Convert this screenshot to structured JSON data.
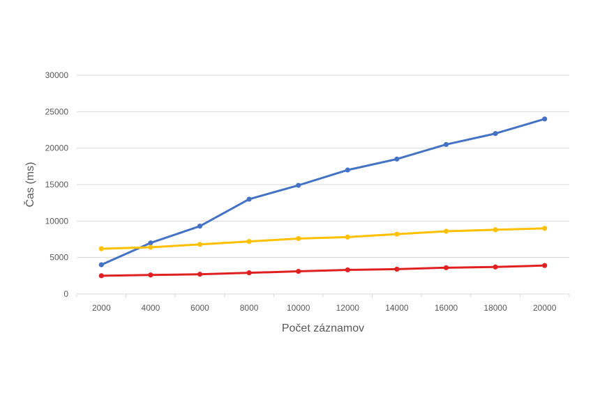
{
  "chart_data": {
    "type": "line",
    "title": "",
    "xlabel": "Počet záznamov",
    "ylabel": "Čas (ms)",
    "x": [
      2000,
      4000,
      6000,
      8000,
      10000,
      12000,
      14000,
      16000,
      18000,
      20000
    ],
    "x_tick_labels": [
      "2000",
      "4000",
      "6000",
      "8000",
      "10000",
      "12000",
      "14000",
      "16000",
      "18000",
      "20000"
    ],
    "y_tick_labels": [
      "0",
      "5000",
      "10000",
      "15000",
      "20000",
      "25000",
      "30000"
    ],
    "y_ticks": [
      0,
      5000,
      10000,
      15000,
      20000,
      25000,
      30000
    ],
    "ylim": [
      0,
      30000
    ],
    "grid": "horizontal",
    "legend": "none",
    "series": [
      {
        "color": "#4472c4",
        "values": [
          4000,
          7000,
          9300,
          13000,
          14900,
          17000,
          18500,
          20500,
          22000,
          24000
        ]
      },
      {
        "color": "#ffc000",
        "values": [
          6200,
          6400,
          6800,
          7200,
          7600,
          7800,
          8200,
          8600,
          8800,
          9000
        ]
      },
      {
        "color": "#e02020",
        "values": [
          2500,
          2600,
          2700,
          2900,
          3100,
          3300,
          3400,
          3600,
          3700,
          3900
        ]
      }
    ]
  }
}
